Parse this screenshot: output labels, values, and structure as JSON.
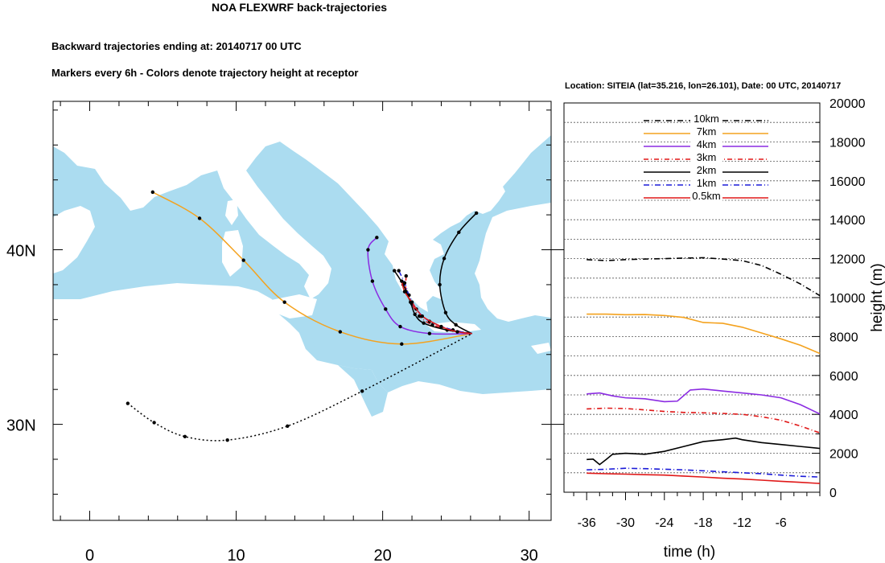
{
  "header": {
    "title": "NOA FLEXWRF back-trajectories",
    "subtitle1": "Backward trajectories ending at: 20140717  00 UTC",
    "subtitle2": "Markers every 6h - Colors denote trajectory height at receptor"
  },
  "colors": {
    "sea": "#abdcf0",
    "land": "#ffffff",
    "h10km": "#000000",
    "h7km": "#f4a21e",
    "h4km": "#8b2be2",
    "h3km": "#e01818",
    "h2km": "#000000",
    "h1km": "#1b1bd8",
    "h05km": "#e01818"
  },
  "chart_data": [
    {
      "type": "line",
      "subtype": "map-trajectories",
      "xlim": [
        -2.5,
        31.5
      ],
      "ylim": [
        24.5,
        48.5
      ],
      "x_ticks": [
        0,
        10,
        20,
        30
      ],
      "y_ticks": [
        {
          "value": 30,
          "label": "30N"
        },
        {
          "value": 40,
          "label": "40N"
        }
      ],
      "receptor": {
        "lon": 26.101,
        "lat": 35.216
      },
      "series": [
        {
          "key": "7km",
          "color": "#f4a21e",
          "dash": "",
          "points": [
            [
              4.3,
              43.3
            ],
            [
              7.5,
              41.8
            ],
            [
              10.5,
              39.4
            ],
            [
              13.3,
              37.0
            ],
            [
              17.1,
              35.3
            ],
            [
              21.3,
              34.6
            ],
            [
              26.1,
              35.2
            ]
          ]
        },
        {
          "key": "4km",
          "color": "#8b2be2",
          "dash": "",
          "points": [
            [
              19.6,
              40.7
            ],
            [
              19.0,
              40.0
            ],
            [
              19.3,
              38.2
            ],
            [
              20.2,
              36.6
            ],
            [
              21.2,
              35.6
            ],
            [
              23.2,
              35.2
            ],
            [
              26.1,
              35.2
            ]
          ]
        },
        {
          "key": "3km",
          "color": "#e01818",
          "dash": "6,3,1,3",
          "points": [
            [
              21.6,
              38.5
            ],
            [
              21.6,
              37.6
            ],
            [
              22.0,
              36.9
            ],
            [
              22.5,
              36.2
            ],
            [
              23.4,
              35.7
            ],
            [
              24.8,
              35.4
            ],
            [
              26.1,
              35.2
            ]
          ]
        },
        {
          "key": "2km-west",
          "color": "#000000",
          "dash": "",
          "points": [
            [
              20.8,
              38.8
            ],
            [
              21.4,
              38.0
            ],
            [
              21.9,
              37.0
            ],
            [
              22.2,
              36.3
            ],
            [
              22.8,
              35.8
            ],
            [
              24.4,
              35.4
            ],
            [
              26.1,
              35.2
            ]
          ]
        },
        {
          "key": "2km-east",
          "color": "#000000",
          "dash": "",
          "points": [
            [
              26.4,
              42.1
            ],
            [
              25.2,
              41.0
            ],
            [
              24.2,
              39.5
            ],
            [
              23.9,
              38.0
            ],
            [
              24.3,
              36.4
            ],
            [
              25.0,
              35.7
            ],
            [
              26.1,
              35.2
            ]
          ]
        },
        {
          "key": "1km",
          "color": "#1b1bd8",
          "dash": "7,3,1,3",
          "points": [
            [
              21.1,
              38.8
            ],
            [
              21.5,
              38.1
            ],
            [
              21.8,
              37.4
            ],
            [
              22.3,
              36.6
            ],
            [
              23.2,
              35.9
            ],
            [
              24.8,
              35.4
            ],
            [
              26.1,
              35.2
            ]
          ]
        },
        {
          "key": "0.5km",
          "color": "#e01818",
          "dash": "",
          "points": [
            [
              21.3,
              38.2
            ],
            [
              21.5,
              37.6
            ],
            [
              22.0,
              37.0
            ],
            [
              22.7,
              36.2
            ],
            [
              24.0,
              35.6
            ],
            [
              25.1,
              35.3
            ],
            [
              26.1,
              35.2
            ]
          ]
        },
        {
          "key": "10km",
          "color": "#000000",
          "dash": "2,3",
          "points": [
            [
              2.6,
              31.2
            ],
            [
              4.4,
              30.1
            ],
            [
              6.5,
              29.3
            ],
            [
              9.4,
              29.1
            ],
            [
              13.5,
              29.9
            ],
            [
              18.6,
              31.9
            ],
            [
              26.1,
              35.2
            ]
          ]
        }
      ]
    },
    {
      "type": "line",
      "title": "Location: SITEIA (lat=35.216,  lon=26.101), Date: 00 UTC, 20140717",
      "xlabel": "time (h)",
      "ylabel": "height (m)",
      "xlim": [
        -39.5,
        0
      ],
      "ylim": [
        0,
        20000
      ],
      "x_ticks": [
        -36,
        -30,
        -24,
        -18,
        -12,
        -6
      ],
      "y_ticks": [
        0,
        2000,
        4000,
        6000,
        8000,
        10000,
        12000,
        14000,
        16000,
        18000,
        20000
      ],
      "legend": "top-center",
      "grid": "dotted",
      "series": [
        {
          "name": "10km",
          "color": "#000000",
          "dash": "7,3,1,3",
          "x": [
            -36,
            -33,
            -30,
            -27,
            -24,
            -21,
            -18,
            -15,
            -12,
            -9,
            -6,
            -3,
            0
          ],
          "y": [
            11950,
            11900,
            11950,
            11980,
            12000,
            12030,
            12050,
            11980,
            11900,
            11650,
            11200,
            10700,
            10100
          ]
        },
        {
          "name": "7km",
          "color": "#f4a21e",
          "dash": "",
          "x": [
            -36,
            -33,
            -30,
            -27,
            -24,
            -21,
            -18,
            -15,
            -12,
            -9,
            -6,
            -3,
            0
          ],
          "y": [
            9150,
            9150,
            9120,
            9130,
            9080,
            8980,
            8720,
            8680,
            8480,
            8180,
            7880,
            7550,
            7130
          ]
        },
        {
          "name": "4km",
          "color": "#8b2be2",
          "dash": "",
          "x": [
            -36,
            -34,
            -32,
            -30,
            -27,
            -24,
            -22,
            -20,
            -18,
            -15,
            -12,
            -9,
            -6,
            -3,
            0
          ],
          "y": [
            5050,
            5100,
            4950,
            4850,
            4800,
            4650,
            4680,
            5250,
            5300,
            5200,
            5100,
            5000,
            4850,
            4500,
            4020
          ]
        },
        {
          "name": "3km",
          "color": "#e01818",
          "dash": "6,3,1,3",
          "x": [
            -36,
            -33,
            -30,
            -27,
            -24,
            -21,
            -18,
            -15,
            -12,
            -9,
            -6,
            -3,
            0
          ],
          "y": [
            4280,
            4320,
            4300,
            4230,
            4150,
            4100,
            4080,
            4050,
            4000,
            3880,
            3700,
            3400,
            3050
          ]
        },
        {
          "name": "2km",
          "color": "#000000",
          "dash": "",
          "x": [
            -36,
            -35,
            -34,
            -33,
            -32,
            -30,
            -27,
            -24,
            -21,
            -18,
            -15,
            -13,
            -12,
            -9,
            -6,
            -3,
            0
          ],
          "y": [
            1680,
            1700,
            1420,
            1680,
            1950,
            2000,
            1950,
            2100,
            2350,
            2600,
            2700,
            2780,
            2700,
            2550,
            2450,
            2350,
            2250
          ]
        },
        {
          "name": "1km",
          "color": "#1b1bd8",
          "dash": "7,3,1,3",
          "x": [
            -36,
            -33,
            -30,
            -27,
            -24,
            -21,
            -18,
            -15,
            -12,
            -9,
            -6,
            -3,
            0
          ],
          "y": [
            1150,
            1180,
            1230,
            1210,
            1180,
            1150,
            1100,
            1050,
            1000,
            950,
            880,
            820,
            780
          ]
        },
        {
          "name": "0.5km",
          "color": "#e01818",
          "dash": "",
          "x": [
            -36,
            -33,
            -30,
            -27,
            -24,
            -21,
            -18,
            -15,
            -12,
            -9,
            -6,
            -3,
            0
          ],
          "y": [
            980,
            950,
            930,
            900,
            880,
            830,
            780,
            720,
            680,
            620,
            560,
            510,
            450
          ]
        }
      ]
    }
  ]
}
